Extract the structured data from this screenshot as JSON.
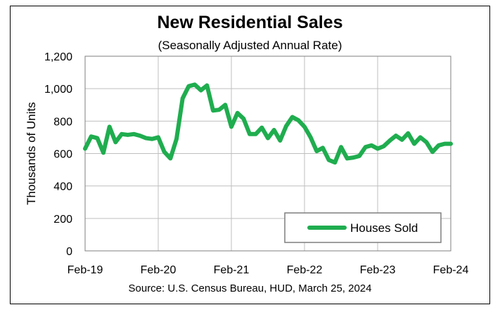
{
  "chart_data": {
    "type": "line",
    "title": "New Residential Sales",
    "subtitle": "(Seasonally Adjusted Annual Rate)",
    "ylabel": "Thousands of Units",
    "xlabel": "",
    "source": "Source:  U.S. Census Bureau, HUD, March 25, 2024",
    "ylim": [
      0,
      1200
    ],
    "yticks": [
      "0",
      "200",
      "400",
      "600",
      "800",
      "1,000",
      "1,200"
    ],
    "ytick_values": [
      0,
      200,
      400,
      600,
      800,
      1000,
      1200
    ],
    "xtick_labels": [
      "Feb-19",
      "Feb-20",
      "Feb-21",
      "Feb-22",
      "Feb-23",
      "Feb-24"
    ],
    "grid": true,
    "legend_position": "bottom-right",
    "color": "#1fad4f",
    "x": [
      "2019-02",
      "2019-03",
      "2019-04",
      "2019-05",
      "2019-06",
      "2019-07",
      "2019-08",
      "2019-09",
      "2019-10",
      "2019-11",
      "2019-12",
      "2020-01",
      "2020-02",
      "2020-03",
      "2020-04",
      "2020-05",
      "2020-06",
      "2020-07",
      "2020-08",
      "2020-09",
      "2020-10",
      "2020-11",
      "2020-12",
      "2021-01",
      "2021-02",
      "2021-03",
      "2021-04",
      "2021-05",
      "2021-06",
      "2021-07",
      "2021-08",
      "2021-09",
      "2021-10",
      "2021-11",
      "2021-12",
      "2022-01",
      "2022-02",
      "2022-03",
      "2022-04",
      "2022-05",
      "2022-06",
      "2022-07",
      "2022-08",
      "2022-09",
      "2022-10",
      "2022-11",
      "2022-12",
      "2023-01",
      "2023-02",
      "2023-03",
      "2023-04",
      "2023-05",
      "2023-06",
      "2023-07",
      "2023-08",
      "2023-09",
      "2023-10",
      "2023-11",
      "2023-12",
      "2024-01",
      "2024-02"
    ],
    "series": [
      {
        "name": "Houses Sold",
        "values": [
          630,
          705,
          695,
          605,
          765,
          670,
          720,
          715,
          720,
          710,
          695,
          690,
          700,
          610,
          570,
          690,
          940,
          1015,
          1025,
          990,
          1020,
          865,
          870,
          900,
          765,
          850,
          815,
          720,
          720,
          760,
          695,
          745,
          680,
          770,
          825,
          805,
          765,
          700,
          615,
          635,
          560,
          545,
          640,
          570,
          575,
          585,
          640,
          650,
          630,
          645,
          680,
          710,
          685,
          725,
          660,
          700,
          670,
          610,
          650,
          660,
          660
        ]
      }
    ]
  }
}
